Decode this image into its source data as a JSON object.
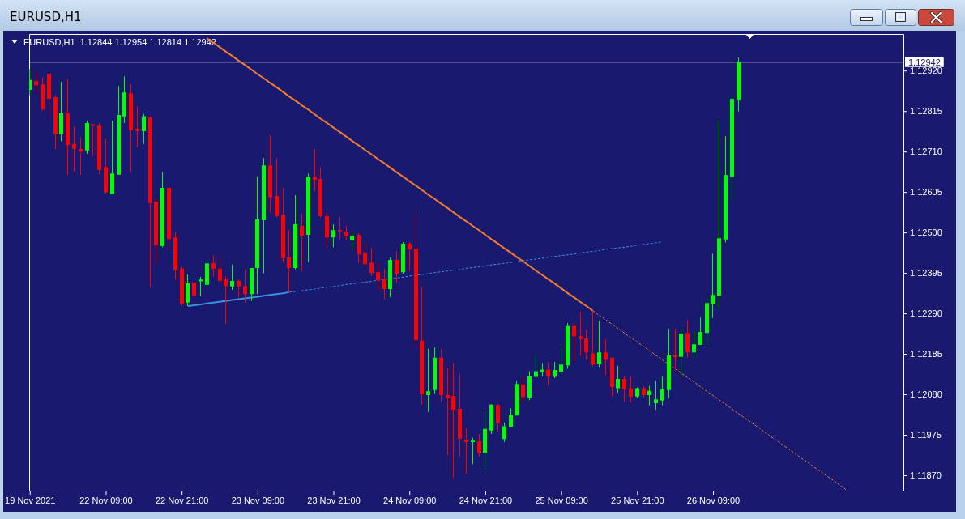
{
  "chart_data": {
    "type": "candlestick",
    "title": "EURUSD,H1",
    "subtitle": "EURUSD,H1  1.12844 1.12954 1.12814 1.12942",
    "categories": [
      "19 Nov 2021",
      null,
      null,
      null,
      null,
      null,
      null,
      null,
      null,
      null,
      null,
      null,
      "22 Nov 09:00",
      null,
      null,
      null,
      null,
      null,
      null,
      null,
      null,
      null,
      null,
      null,
      "22 Nov 21:00",
      null,
      null,
      null,
      null,
      null,
      null,
      null,
      null,
      null,
      null,
      null,
      "23 Nov 09:00",
      null,
      null,
      null,
      null,
      null,
      null,
      null,
      null,
      null,
      null,
      null,
      "23 Nov 21:00",
      null,
      null,
      null,
      null,
      null,
      null,
      null,
      null,
      null,
      null,
      null,
      "24 Nov 09:00",
      null,
      null,
      null,
      null,
      null,
      null,
      null,
      null,
      null,
      null,
      null,
      "24 Nov 21:00",
      null,
      null,
      null,
      null,
      null,
      null,
      null,
      null,
      null,
      null,
      null,
      "25 Nov 09:00",
      null,
      null,
      null,
      null,
      null,
      null,
      null,
      null,
      null,
      null,
      null,
      "25 Nov 21:00",
      null,
      null,
      null,
      null,
      null,
      null,
      null,
      null,
      null,
      null,
      null,
      "26 Nov 09:00",
      null,
      null,
      null,
      null,
      null,
      null,
      null,
      null,
      null,
      null,
      null,
      null,
      null,
      null,
      null,
      null,
      null,
      null,
      null,
      null,
      null,
      null,
      null,
      null,
      null,
      null,
      null,
      null,
      null,
      null
    ],
    "ohlc": [
      [
        1.1287,
        1.12924,
        1.12856,
        1.12896
      ],
      [
        1.12893,
        1.12919,
        1.12861,
        1.12882
      ],
      [
        1.12884,
        1.12903,
        1.12816,
        1.12819
      ],
      [
        1.12912,
        1.12912,
        1.12798,
        1.12847
      ],
      [
        1.12851,
        1.12856,
        1.12716,
        1.12755
      ],
      [
        1.12755,
        1.12891,
        1.12737,
        1.12809
      ],
      [
        1.12809,
        1.12898,
        1.1265,
        1.12727
      ],
      [
        1.1273,
        1.12775,
        1.12658,
        1.12717
      ],
      [
        1.12717,
        1.12746,
        1.1265,
        1.1271
      ],
      [
        1.12713,
        1.1279,
        1.12704,
        1.12784
      ],
      [
        1.12781,
        1.12781,
        1.12698,
        1.12777
      ],
      [
        1.12777,
        1.12784,
        1.12651,
        1.12662
      ],
      [
        1.1267,
        1.12744,
        1.12601,
        1.12604
      ],
      [
        1.12601,
        1.1279,
        1.12601,
        1.12653
      ],
      [
        1.1265,
        1.1288,
        1.1265,
        1.12805
      ],
      [
        1.12801,
        1.12905,
        1.12784,
        1.12863
      ],
      [
        1.12861,
        1.12884,
        1.12656,
        1.12767
      ],
      [
        1.12769,
        1.12828,
        1.12721,
        1.12763
      ],
      [
        1.12763,
        1.12807,
        1.1273,
        1.12802
      ],
      [
        1.128,
        1.128,
        1.12359,
        1.12576
      ],
      [
        1.1258,
        1.1259,
        1.1242,
        1.12467
      ],
      [
        1.12465,
        1.12657,
        1.12462,
        1.12616
      ],
      [
        1.12616,
        1.1262,
        1.12454,
        1.12483
      ],
      [
        1.12487,
        1.12502,
        1.12378,
        1.12402
      ],
      [
        1.12406,
        1.12411,
        1.1231,
        1.12315
      ],
      [
        1.12318,
        1.12391,
        1.12309,
        1.12368
      ],
      [
        1.1237,
        1.12373,
        1.12331,
        1.12336
      ],
      [
        1.12373,
        1.12385,
        1.12335,
        1.12378
      ],
      [
        1.12364,
        1.1242,
        1.1236,
        1.1242
      ],
      [
        1.1242,
        1.12441,
        1.12385,
        1.12406
      ],
      [
        1.12406,
        1.12441,
        1.12369,
        1.12374
      ],
      [
        1.12378,
        1.12387,
        1.12263,
        1.12361
      ],
      [
        1.1236,
        1.12416,
        1.12351,
        1.12374
      ],
      [
        1.12374,
        1.12378,
        1.12331,
        1.1236
      ],
      [
        1.12361,
        1.12403,
        1.12318,
        1.1234
      ],
      [
        1.1234,
        1.12408,
        1.12322,
        1.12408
      ],
      [
        1.12408,
        1.12645,
        1.1234,
        1.12534
      ],
      [
        1.12532,
        1.12693,
        1.12394,
        1.12674
      ],
      [
        1.12674,
        1.12754,
        1.12553,
        1.12591
      ],
      [
        1.12595,
        1.12693,
        1.12539,
        1.12543
      ],
      [
        1.12546,
        1.12616,
        1.12422,
        1.12433
      ],
      [
        1.12435,
        1.12506,
        1.12344,
        1.12408
      ],
      [
        1.12408,
        1.12597,
        1.12404,
        1.12521
      ],
      [
        1.12517,
        1.12548,
        1.124,
        1.12492
      ],
      [
        1.12494,
        1.12653,
        1.12423,
        1.12645
      ],
      [
        1.12645,
        1.12716,
        1.12608,
        1.12637
      ],
      [
        1.12639,
        1.1267,
        1.12539,
        1.12542
      ],
      [
        1.12542,
        1.12553,
        1.12462,
        1.12487
      ],
      [
        1.12487,
        1.12521,
        1.12462,
        1.12506
      ],
      [
        1.12506,
        1.1254,
        1.12483,
        1.12503
      ],
      [
        1.125,
        1.12517,
        1.12481,
        1.1249
      ],
      [
        1.12479,
        1.12504,
        1.12458,
        1.12492
      ],
      [
        1.12494,
        1.12498,
        1.12422,
        1.12443
      ],
      [
        1.12448,
        1.12475,
        1.12408,
        1.12418
      ],
      [
        1.12422,
        1.1246,
        1.12387,
        1.12395
      ],
      [
        1.12397,
        1.12422,
        1.12351,
        1.12376
      ],
      [
        1.12378,
        1.12406,
        1.12326,
        1.12353
      ],
      [
        1.12353,
        1.12435,
        1.12332,
        1.12429
      ],
      [
        1.12429,
        1.12452,
        1.1237,
        1.12393
      ],
      [
        1.12397,
        1.12475,
        1.12393,
        1.12471
      ],
      [
        1.12471,
        1.12475,
        1.12401,
        1.12456
      ],
      [
        1.12458,
        1.12553,
        1.12202,
        1.12221
      ],
      [
        1.12219,
        1.12359,
        1.12053,
        1.1208
      ],
      [
        1.12078,
        1.12198,
        1.12034,
        1.12088
      ],
      [
        1.12091,
        1.12202,
        1.12082,
        1.12175
      ],
      [
        1.12175,
        1.12198,
        1.12059,
        1.12078
      ],
      [
        1.12078,
        1.12147,
        1.11923,
        1.1207
      ],
      [
        1.12076,
        1.12162,
        1.11864,
        1.1204
      ],
      [
        1.12042,
        1.12133,
        1.11918,
        1.11965
      ],
      [
        1.11962,
        1.11992,
        1.11874,
        1.11956
      ],
      [
        1.11956,
        1.11967,
        1.11899,
        1.1196
      ],
      [
        1.11958,
        1.11977,
        1.11918,
        1.11927
      ],
      [
        1.11929,
        1.12038,
        1.11885,
        1.1199
      ],
      [
        1.11986,
        1.12055,
        1.11977,
        1.12053
      ],
      [
        1.12052,
        1.12055,
        1.11983,
        1.12005
      ],
      [
        1.11964,
        1.12007,
        1.11956,
        1.11997
      ],
      [
        1.11996,
        1.12043,
        1.11996,
        1.12027
      ],
      [
        1.12025,
        1.12115,
        1.12025,
        1.12107
      ],
      [
        1.12105,
        1.12126,
        1.12059,
        1.12073
      ],
      [
        1.12071,
        1.1214,
        1.12065,
        1.12128
      ],
      [
        1.12125,
        1.12184,
        1.12122,
        1.1214
      ],
      [
        1.12137,
        1.12161,
        1.12126,
        1.12144
      ],
      [
        1.12144,
        1.12164,
        1.12102,
        1.12126
      ],
      [
        1.12125,
        1.12164,
        1.12122,
        1.12143
      ],
      [
        1.12139,
        1.12204,
        1.12128,
        1.12157
      ],
      [
        1.12155,
        1.12265,
        1.12146,
        1.12257
      ],
      [
        1.12257,
        1.12265,
        1.12165,
        1.12231
      ],
      [
        1.12231,
        1.12294,
        1.12181,
        1.12223
      ],
      [
        1.12225,
        1.12248,
        1.1217,
        1.12189
      ],
      [
        1.12186,
        1.12297,
        1.12153,
        1.12157
      ],
      [
        1.1216,
        1.1227,
        1.12151,
        1.12189
      ],
      [
        1.12189,
        1.12223,
        1.12131,
        1.1217
      ],
      [
        1.12175,
        1.12175,
        1.12074,
        1.12099
      ],
      [
        1.12096,
        1.12154,
        1.12084,
        1.1212
      ],
      [
        1.1212,
        1.12127,
        1.12062,
        1.12094
      ],
      [
        1.12096,
        1.12127,
        1.12059,
        1.12074
      ],
      [
        1.12074,
        1.12098,
        1.12071,
        1.12096
      ],
      [
        1.12096,
        1.12101,
        1.12072,
        1.12078
      ],
      [
        1.12078,
        1.12102,
        1.12051,
        1.12089
      ],
      [
        1.12057,
        1.12116,
        1.1204,
        1.12067
      ],
      [
        1.12064,
        1.12127,
        1.12051,
        1.12094
      ],
      [
        1.12091,
        1.1225,
        1.1207,
        1.12181
      ],
      [
        1.12181,
        1.1225,
        1.12144,
        1.12176
      ],
      [
        1.12177,
        1.1225,
        1.12126,
        1.12237
      ],
      [
        1.12239,
        1.12273,
        1.12175,
        1.12189
      ],
      [
        1.12189,
        1.12244,
        1.12176,
        1.1221
      ],
      [
        1.12208,
        1.12279,
        1.12208,
        1.12242
      ],
      [
        1.12239,
        1.12332,
        1.12208,
        1.12317
      ],
      [
        1.12314,
        1.12445,
        1.12278,
        1.12338
      ],
      [
        1.12336,
        1.12792,
        1.12303,
        1.12485
      ],
      [
        1.12482,
        1.1275,
        1.12474,
        1.12649
      ],
      [
        1.12644,
        1.12851,
        1.12582,
        1.12847
      ],
      [
        1.12844,
        1.12954,
        1.12814,
        1.12942
      ],
      null,
      null,
      null,
      null,
      null,
      null,
      null,
      null,
      null,
      null,
      null,
      null,
      null,
      null,
      null,
      null,
      null,
      null,
      null,
      null,
      null,
      null,
      null,
      null,
      null,
      null
    ],
    "colors": [
      "#00ff00",
      "#ff0000",
      "#ff0000",
      "#ff0000",
      "#ff0000",
      "#00ff00",
      "#ff0000",
      "#ff0000",
      "#ff0000",
      "#00ff00",
      "#ff0000",
      "#ff0000",
      "#ff0000",
      "#00ff00",
      "#00ff00",
      "#00ff00",
      "#ff0000",
      "#ff0000",
      "#00ff00",
      "#ff0000",
      "#ff0000",
      "#00ff00",
      "#ff0000",
      "#ff0000",
      "#ff0000",
      "#00ff00",
      "#ff0000",
      "#00ff00",
      "#00ff00",
      "#ff0000",
      "#ff0000",
      "#ff0000",
      "#00ff00",
      "#ff0000",
      "#ff0000",
      "#00ff00",
      "#00ff00",
      "#00ff00",
      "#ff0000",
      "#ff0000",
      "#ff0000",
      "#ff0000",
      "#00ff00",
      "#ff0000",
      "#00ff00",
      "#ff0000",
      "#ff0000",
      "#ff0000",
      "#00ff00",
      "#ff0000",
      "#ff0000",
      "#00ff00",
      "#ff0000",
      "#ff0000",
      "#ff0000",
      "#ff0000",
      "#ff0000",
      "#00ff00",
      "#ff0000",
      "#00ff00",
      "#ff0000",
      "#ff0000",
      "#ff0000",
      "#00ff00",
      "#00ff00",
      "#ff0000",
      "#ff0000",
      "#ff0000",
      "#ff0000",
      "#ff0000",
      "#00ff00",
      "#ff0000",
      "#00ff00",
      "#00ff00",
      "#ff0000",
      "#00ff00",
      "#00ff00",
      "#00ff00",
      "#ff0000",
      "#00ff00",
      "#00ff00",
      "#00ff00",
      "#ff0000",
      "#00ff00",
      "#00ff00",
      "#00ff00",
      "#ff0000",
      "#ff0000",
      "#ff0000",
      "#ff0000",
      "#00ff00",
      "#ff0000",
      "#ff0000",
      "#00ff00",
      "#ff0000",
      "#ff0000",
      "#00ff00",
      "#ff0000",
      "#00ff00",
      "#00ff00",
      "#00ff00",
      "#00ff00",
      "#ff0000",
      "#00ff00",
      "#ff0000",
      "#00ff00",
      "#00ff00",
      "#00ff00",
      "#00ff00",
      "#00ff00",
      "#00ff00",
      "#00ff00",
      "#00ff00",
      null,
      null,
      null,
      null,
      null,
      null,
      null,
      null,
      null,
      null,
      null,
      null,
      null,
      null,
      null,
      null,
      null,
      null,
      null,
      null,
      null,
      null,
      null,
      null,
      null,
      null
    ],
    "ylim": [
      1.1183,
      1.13015
    ],
    "yticks": [
      {
        "value": 1.1187,
        "label": "1.11870"
      },
      {
        "value": 1.11975,
        "label": "1.11975"
      },
      {
        "value": 1.1208,
        "label": "1.12080"
      },
      {
        "value": 1.12185,
        "label": "1.12185"
      },
      {
        "value": 1.1229,
        "label": "1.12290"
      },
      {
        "value": 1.12395,
        "label": "1.12395"
      },
      {
        "value": 1.125,
        "label": "1.12500"
      },
      {
        "value": 1.12605,
        "label": "1.12605"
      },
      {
        "value": 1.1271,
        "label": "1.12710"
      },
      {
        "value": 1.12815,
        "label": "1.12815"
      },
      {
        "value": 1.1292,
        "label": "1.12920"
      }
    ],
    "series": [
      {
        "type": "line",
        "color": "#f57c2a",
        "line_style": "solid",
        "values": [
          null,
          null,
          null,
          null,
          null,
          null,
          null,
          null,
          null,
          null,
          null,
          null,
          null,
          null,
          null,
          null,
          null,
          null,
          null,
          null,
          null,
          null,
          null,
          null,
          null,
          null,
          null,
          null,
          1.13004,
          1.12993,
          1.12981,
          1.12969,
          1.12958,
          1.12946,
          1.12935,
          1.12923,
          1.12911,
          1.129,
          1.12888,
          1.12877,
          1.12865,
          1.12853,
          1.12842,
          1.1283,
          1.12819,
          1.12807,
          1.12795,
          1.12784,
          1.12772,
          1.12761,
          1.12749,
          1.12737,
          1.12726,
          1.12714,
          1.12703,
          1.12691,
          1.1268,
          1.12668,
          1.12656,
          1.12645,
          1.12633,
          1.12622,
          1.1261,
          1.12598,
          1.12587,
          1.12575,
          1.12564,
          1.12552,
          1.1254,
          1.12529,
          1.12517,
          1.12506,
          1.12494,
          1.12482,
          1.12471,
          1.12459,
          1.12448,
          1.12436,
          1.12425,
          1.12413,
          1.12401,
          1.1239,
          1.12378,
          1.12367,
          1.12355,
          1.12343,
          1.12332,
          1.1232,
          1.12309,
          1.12297,
          null,
          null,
          null,
          null,
          null,
          null,
          null,
          null,
          null,
          null,
          null,
          null,
          null,
          null,
          null,
          null,
          null,
          null,
          null,
          null,
          null,
          null,
          null,
          null,
          null,
          null,
          null,
          null,
          null,
          null,
          null,
          null,
          null,
          null,
          null,
          null,
          null,
          null,
          null,
          null,
          null,
          null,
          null,
          null,
          null,
          null,
          null,
          null,
          null
        ]
      },
      {
        "type": "line",
        "color": "#f57c2a",
        "line_style": "dotted",
        "values": [
          null,
          null,
          null,
          null,
          null,
          null,
          null,
          null,
          null,
          null,
          null,
          null,
          null,
          null,
          null,
          null,
          null,
          null,
          null,
          null,
          null,
          null,
          null,
          null,
          null,
          null,
          null,
          null,
          null,
          null,
          null,
          null,
          null,
          null,
          null,
          null,
          null,
          null,
          null,
          null,
          null,
          null,
          null,
          null,
          null,
          null,
          null,
          null,
          null,
          null,
          null,
          null,
          null,
          null,
          null,
          null,
          null,
          null,
          null,
          null,
          null,
          null,
          null,
          null,
          null,
          null,
          null,
          null,
          null,
          null,
          null,
          null,
          null,
          null,
          null,
          null,
          null,
          null,
          null,
          null,
          null,
          null,
          null,
          null,
          null,
          null,
          null,
          null,
          null,
          1.12297,
          1.12285,
          1.12274,
          1.12262,
          1.12251,
          1.12239,
          1.12227,
          1.12216,
          1.12204,
          1.12193,
          1.12181,
          1.12169,
          1.12158,
          1.12146,
          1.12135,
          1.12123,
          1.12112,
          1.121,
          1.12088,
          1.12077,
          1.12065,
          1.12054,
          1.12042,
          1.1203,
          1.12019,
          1.12007,
          1.11996,
          1.11984,
          1.11972,
          1.11961,
          1.11949,
          1.11938,
          1.11926,
          1.11914,
          1.11903,
          1.11891,
          1.1188,
          1.11868,
          1.11857,
          1.11845,
          1.11833,
          null,
          null,
          null,
          null,
          null,
          null,
          null,
          null,
          null
        ]
      },
      {
        "type": "line",
        "color": "#3d8fe0",
        "line_style": "solid",
        "values": [
          null,
          null,
          null,
          null,
          null,
          null,
          null,
          null,
          null,
          null,
          null,
          null,
          null,
          null,
          null,
          null,
          null,
          null,
          null,
          null,
          null,
          null,
          null,
          null,
          null,
          1.12309,
          1.12311,
          1.12313,
          1.12316,
          1.12318,
          1.1232,
          1.12322,
          1.12325,
          1.12327,
          1.12329,
          1.12331,
          1.12333,
          1.12336,
          1.12338,
          1.1234,
          1.12342,
          1.12345,
          null,
          null,
          null,
          null,
          null,
          null,
          null,
          null,
          null,
          null,
          null,
          null,
          null,
          null,
          null,
          null,
          null,
          null,
          null,
          null,
          null,
          null,
          null,
          null,
          null,
          null,
          null,
          null,
          null,
          null,
          null,
          null,
          null,
          null,
          null,
          null,
          null,
          null,
          null,
          null,
          null,
          null,
          null,
          null,
          null,
          null,
          null,
          null,
          null,
          null,
          null,
          null,
          null,
          null,
          null,
          null,
          null,
          null,
          null,
          null,
          null,
          null,
          null,
          null,
          null,
          null,
          null,
          null,
          null,
          null,
          null,
          null,
          null,
          null,
          null,
          null,
          null,
          null,
          null,
          null,
          null,
          null,
          null,
          null,
          null,
          null,
          null,
          null,
          null,
          null,
          null,
          null,
          null,
          null,
          null,
          null,
          null
        ]
      },
      {
        "type": "line",
        "color": "#3d8fe0",
        "line_style": "dotted",
        "values": [
          null,
          null,
          null,
          null,
          null,
          null,
          null,
          null,
          null,
          null,
          null,
          null,
          null,
          null,
          null,
          null,
          null,
          null,
          null,
          null,
          null,
          null,
          null,
          null,
          null,
          null,
          null,
          null,
          null,
          null,
          null,
          null,
          null,
          null,
          null,
          null,
          null,
          null,
          null,
          null,
          null,
          1.12345,
          1.12347,
          1.12349,
          1.12351,
          1.12353,
          1.12356,
          1.12358,
          1.1236,
          1.12362,
          1.12365,
          1.12367,
          1.12369,
          1.12371,
          1.12373,
          1.12376,
          1.12378,
          1.1238,
          1.12382,
          1.12384,
          1.12387,
          1.12389,
          1.12391,
          1.12393,
          1.12396,
          1.12398,
          1.124,
          1.12402,
          1.12404,
          1.12407,
          1.12409,
          1.12411,
          1.12413,
          1.12416,
          1.12418,
          1.1242,
          1.12422,
          1.12424,
          1.12427,
          1.12429,
          1.12431,
          1.12433,
          1.12436,
          1.12438,
          1.1244,
          1.12442,
          1.12444,
          1.12447,
          1.12449,
          1.12451,
          1.12453,
          1.12456,
          1.12458,
          1.1246,
          1.12462,
          1.12464,
          1.12467,
          1.12469,
          1.12471,
          1.12473,
          1.12476,
          null,
          null,
          null,
          null,
          null,
          null,
          null,
          null,
          null,
          null,
          null,
          null,
          null,
          null,
          null,
          null,
          null,
          null,
          null,
          null,
          null,
          null,
          null,
          null,
          null,
          null,
          null,
          null,
          null,
          null,
          null,
          null,
          null,
          null,
          null,
          null,
          null,
          null
        ]
      }
    ],
    "ref_lines": [
      {
        "axis": "y",
        "value": 1.12942,
        "label": "1.12942",
        "color": "#ffffff"
      }
    ]
  }
}
